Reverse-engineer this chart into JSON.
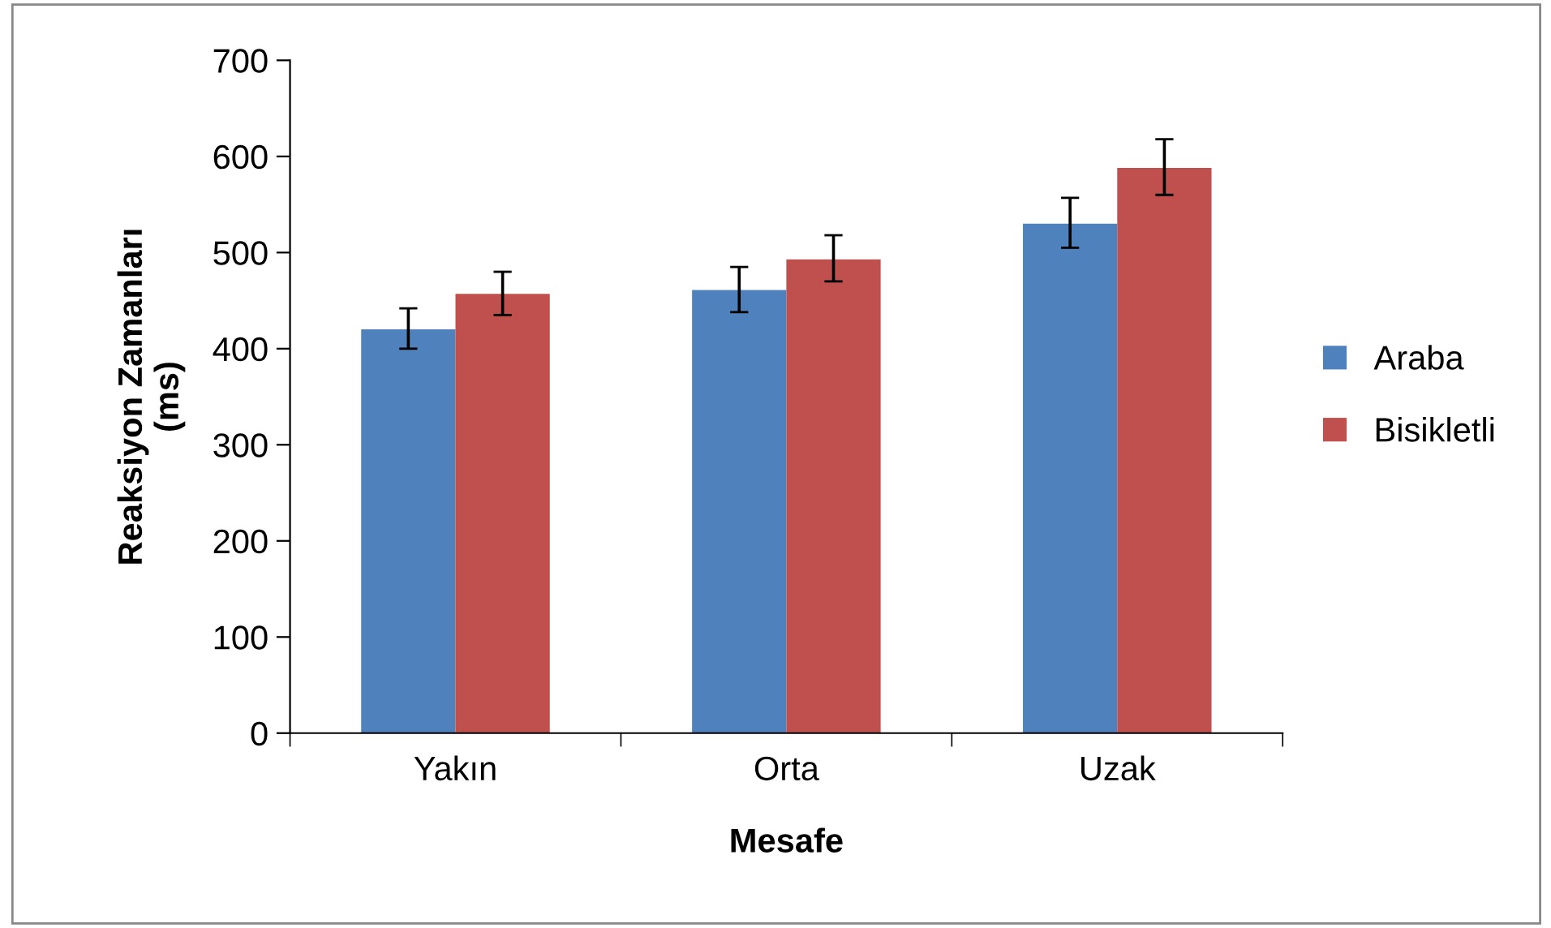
{
  "chart_data": {
    "type": "bar",
    "xlabel": "Mesafe",
    "ylabel": "Reaksiyon Zamanları\n(ms)",
    "categories": [
      "Yakın",
      "Orta",
      "Uzak"
    ],
    "series": [
      {
        "name": "Araba",
        "color": "#4f81bd",
        "values": [
          420,
          461,
          530
        ],
        "errors": [
          [
            400,
            442
          ],
          [
            438,
            485
          ],
          [
            505,
            557
          ]
        ]
      },
      {
        "name": "Bisikletli",
        "color": "#c0504d",
        "values": [
          457,
          493,
          588
        ],
        "errors": [
          [
            435,
            480
          ],
          [
            470,
            518
          ],
          [
            560,
            618
          ]
        ]
      }
    ],
    "ylim": [
      0,
      700
    ],
    "yticks": [
      0,
      100,
      200,
      300,
      400,
      500,
      600,
      700
    ],
    "grid": false,
    "legend": "right"
  }
}
